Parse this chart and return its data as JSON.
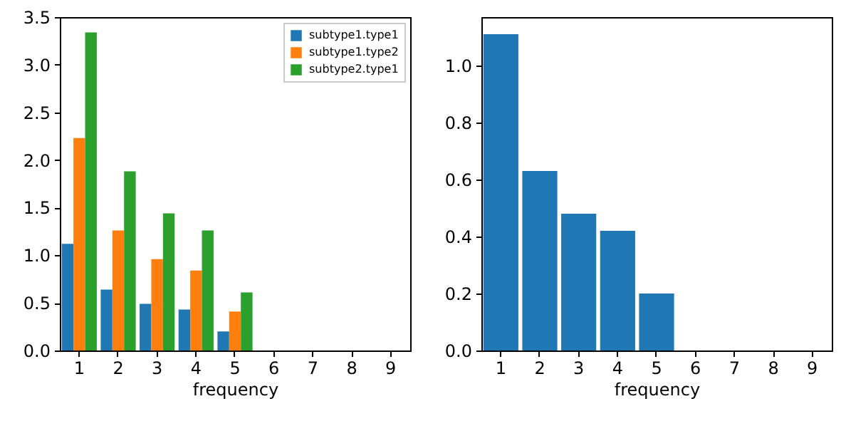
{
  "chart_data": [
    {
      "type": "bar",
      "xlabel": "frequency",
      "categories": [
        "1",
        "2",
        "3",
        "4",
        "5",
        "6",
        "7",
        "8",
        "9"
      ],
      "ylim": [
        0,
        3.5
      ],
      "yticks": [
        {
          "value": 0,
          "label": "0.0"
        },
        0.5,
        {
          "value": 1,
          "label": "1.0"
        },
        1.5,
        {
          "value": 2,
          "label": "2.0"
        },
        2.5,
        {
          "value": 3,
          "label": "3.0"
        },
        3.5
      ],
      "grid": false,
      "legend": "top right",
      "series": [
        {
          "name": "subtype1.type1",
          "color": "#1f77b4",
          "values": [
            1.12,
            0.64,
            0.49,
            0.43,
            0.2,
            null,
            null,
            null,
            null
          ]
        },
        {
          "name": "subtype1.type2",
          "color": "#ff7f0e",
          "values": [
            2.23,
            1.26,
            0.96,
            0.84,
            0.41,
            null,
            null,
            null,
            null
          ]
        },
        {
          "name": "subtype2.type1",
          "color": "#2ca02c",
          "values": [
            3.34,
            1.88,
            1.44,
            1.26,
            0.61,
            null,
            null,
            null,
            null
          ]
        }
      ]
    },
    {
      "type": "bar",
      "xlabel": "frequency",
      "categories": [
        "1",
        "2",
        "3",
        "4",
        "5",
        "6",
        "7",
        "8",
        "9"
      ],
      "ylim": [
        0,
        1.17
      ],
      "yticks": [
        {
          "value": 0,
          "label": "0.0"
        },
        0.2,
        0.4,
        0.6,
        0.8,
        {
          "value": 1,
          "label": "1.0"
        }
      ],
      "grid": false,
      "series": [
        {
          "color": "#1f77b4",
          "values": [
            1.11,
            0.63,
            0.48,
            0.42,
            0.2,
            null,
            null,
            null,
            null
          ]
        }
      ]
    }
  ]
}
